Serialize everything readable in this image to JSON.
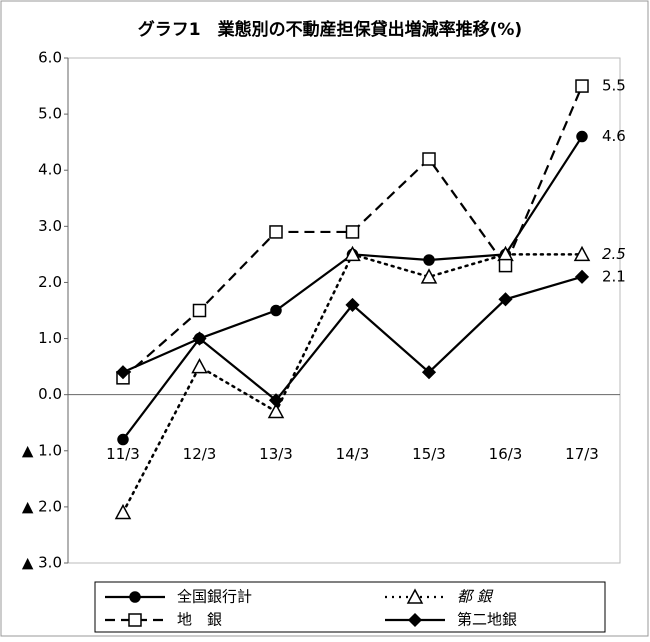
{
  "chart_data": {
    "type": "line",
    "title": "グラフ1　業態別の不動産担保貸出増減率推移(%)",
    "categories": [
      "11/3",
      "12/3",
      "13/3",
      "14/3",
      "15/3",
      "16/3",
      "17/3"
    ],
    "series": [
      {
        "name": "全国銀行計",
        "color": "#000000",
        "line_style": "solid",
        "marker": "circle",
        "values": [
          -0.8,
          1.0,
          1.5,
          2.5,
          2.4,
          2.5,
          4.6
        ]
      },
      {
        "name": "都 銀",
        "color": "#000000",
        "line_style": "dotted",
        "marker": "triangle",
        "values": [
          -2.1,
          0.5,
          -0.3,
          2.5,
          2.1,
          2.5,
          2.5
        ]
      },
      {
        "name": "地　銀",
        "color": "#000000",
        "line_style": "dashed",
        "marker": "square",
        "values": [
          0.3,
          1.5,
          2.9,
          2.9,
          4.2,
          2.3,
          5.5
        ]
      },
      {
        "name": "第二地銀",
        "color": "#000000",
        "line_style": "solid",
        "marker": "diamond",
        "values": [
          0.4,
          1.0,
          -0.1,
          1.6,
          0.4,
          1.7,
          2.1
        ]
      }
    ],
    "ylim": [
      -3,
      6
    ],
    "yticks": [
      {
        "value": 6,
        "label": "6.0"
      },
      {
        "value": 5,
        "label": "5.0"
      },
      {
        "value": 4,
        "label": "4.0"
      },
      {
        "value": 3,
        "label": "3.0"
      },
      {
        "value": 2,
        "label": "2.0"
      },
      {
        "value": 1,
        "label": "1.0"
      },
      {
        "value": 0,
        "label": "0.0"
      },
      {
        "value": -1,
        "label": "▲ 1.0"
      },
      {
        "value": -2,
        "label": "▲ 2.0"
      },
      {
        "value": -3,
        "label": "▲ 3.0"
      }
    ],
    "grid": false,
    "legend": "bottom"
  }
}
